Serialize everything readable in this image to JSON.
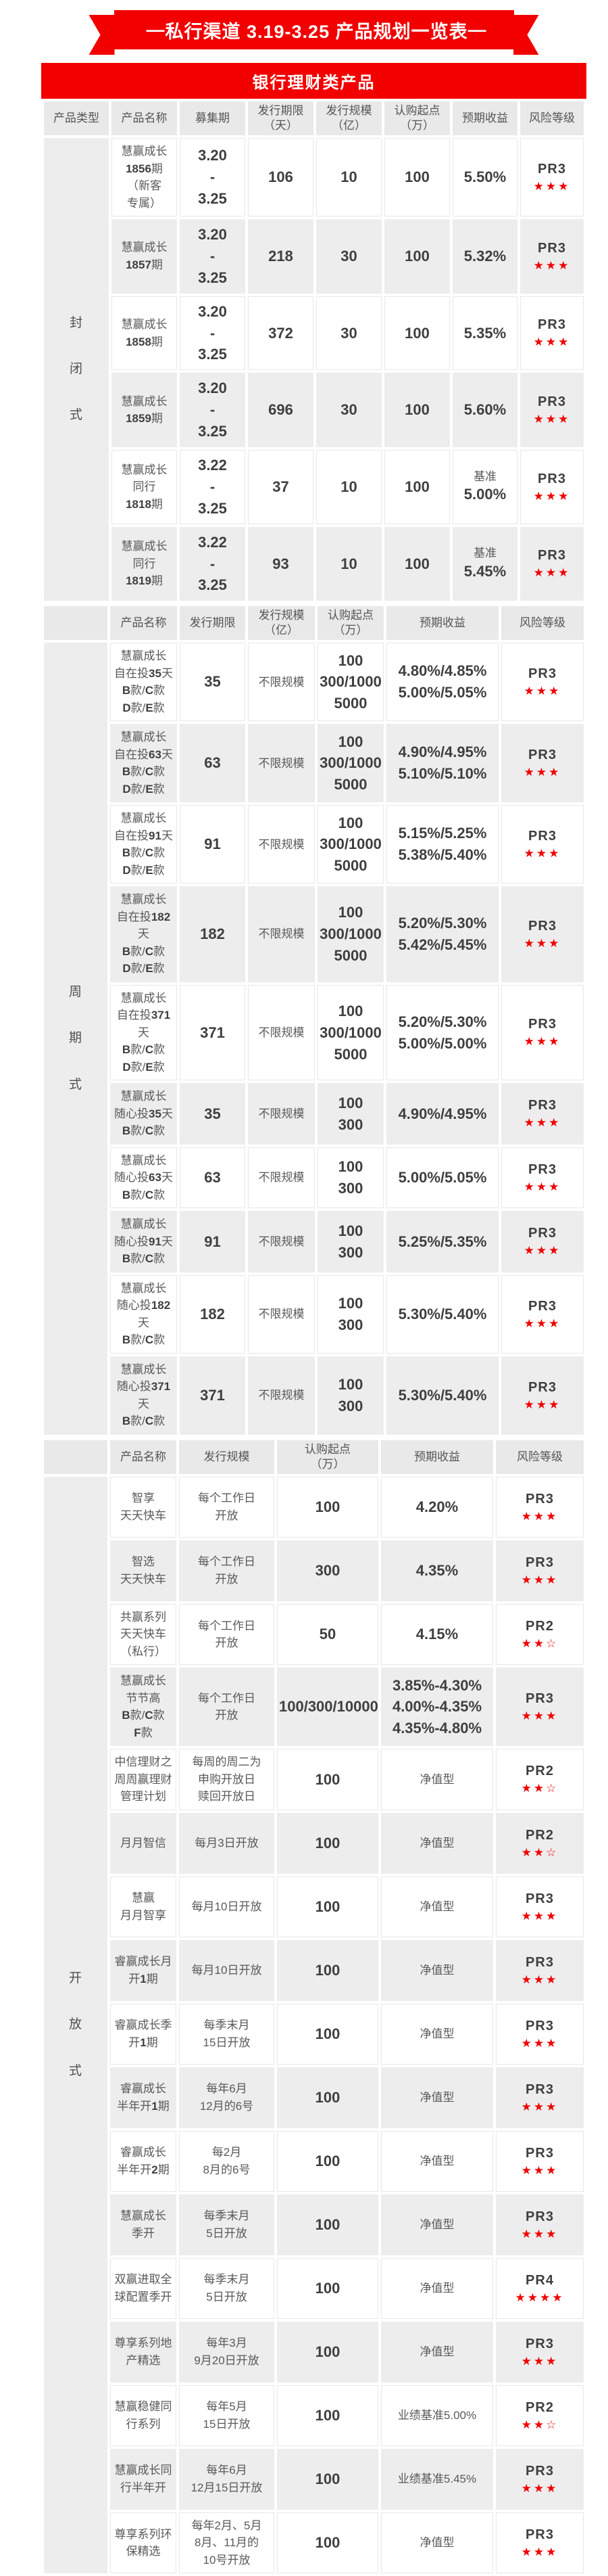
{
  "page": {
    "dash": "—",
    "title": "私行渠道 3.19-3.25 产品规划一览表",
    "category_banner": "银行理财类产品"
  },
  "colors": {
    "brand_red": "#f20000",
    "star_red": "#f00000",
    "header_bg": "#e9e9e9",
    "row_alt_bg": "#ededed",
    "text_dark": "#3f3f3f",
    "text_gray": "#595959"
  },
  "sections": [
    {
      "id": "closed",
      "type_label": "封闭式",
      "headers": [
        "产品类型",
        "产品名称",
        "募集期",
        "发行期限\n（天）",
        "发行规模\n（亿）",
        "认购起点\n（万）",
        "预期收益",
        "风险等级"
      ],
      "keys": [
        "product-type",
        "product-name",
        "raise-period",
        "issue-term-days",
        "issue-scale",
        "min-subscription",
        "expected-yield",
        "risk-level"
      ],
      "rows": [
        [
          [
            "慧赢成长\n1856期\n（新客\n专属）",
            "t"
          ],
          [
            "3.20\n-\n3.25",
            "n"
          ],
          [
            "106",
            "n"
          ],
          [
            "10",
            "n"
          ],
          [
            "100",
            "n"
          ],
          [
            "5.50%",
            "n"
          ],
          [
            "PR3",
            "r",
            3,
            0
          ]
        ],
        [
          [
            "慧赢成长\n1857期",
            "t"
          ],
          [
            "3.20\n-\n3.25",
            "n"
          ],
          [
            "218",
            "n"
          ],
          [
            "30",
            "n"
          ],
          [
            "100",
            "n"
          ],
          [
            "5.32%",
            "n"
          ],
          [
            "PR3",
            "r",
            3,
            0
          ]
        ],
        [
          [
            "慧赢成长\n1858期",
            "t"
          ],
          [
            "3.20\n-\n3.25",
            "n"
          ],
          [
            "372",
            "n"
          ],
          [
            "30",
            "n"
          ],
          [
            "100",
            "n"
          ],
          [
            "5.35%",
            "n"
          ],
          [
            "PR3",
            "r",
            3,
            0
          ]
        ],
        [
          [
            "慧赢成长\n1859期",
            "t"
          ],
          [
            "3.20\n-\n3.25",
            "n"
          ],
          [
            "696",
            "n"
          ],
          [
            "30",
            "n"
          ],
          [
            "100",
            "n"
          ],
          [
            "5.60%",
            "n"
          ],
          [
            "PR3",
            "r",
            3,
            0
          ]
        ],
        [
          [
            "慧赢成长\n同行\n1818期",
            "t"
          ],
          [
            "3.22\n-\n3.25",
            "n"
          ],
          [
            "37",
            "n"
          ],
          [
            "10",
            "n"
          ],
          [
            "100",
            "n"
          ],
          [
            "基准\n5.00%",
            "m"
          ],
          [
            "PR3",
            "r",
            3,
            0
          ]
        ],
        [
          [
            "慧赢成长\n同行\n1819期",
            "t"
          ],
          [
            "3.22\n-\n3.25",
            "n"
          ],
          [
            "93",
            "n"
          ],
          [
            "10",
            "n"
          ],
          [
            "100",
            "n"
          ],
          [
            "基准\n5.45%",
            "m"
          ],
          [
            "PR3",
            "r",
            3,
            0
          ]
        ]
      ]
    },
    {
      "id": "periodic",
      "type_label": "周期式",
      "headers": [
        "",
        "产品名称",
        "发行期限",
        "发行规模\n（亿）",
        "认购起点\n（万）",
        "预期收益",
        "风险等级"
      ],
      "keys": [
        "product-type",
        "product-name",
        "issue-term",
        "issue-scale",
        "min-subscription",
        "expected-yield",
        "risk-level"
      ],
      "rows": [
        [
          [
            "慧赢成长\n自在投35天\nB款/C款\nD款/E款",
            "t"
          ],
          [
            "35",
            "n"
          ],
          [
            "不限规模",
            "t"
          ],
          [
            "100\n300/1000\n5000",
            "n"
          ],
          [
            "4.80%/4.85%\n5.00%/5.05%",
            "n"
          ],
          [
            "PR3",
            "r",
            3,
            0
          ]
        ],
        [
          [
            "慧赢成长\n自在投63天\nB款/C款\nD款/E款",
            "t"
          ],
          [
            "63",
            "n"
          ],
          [
            "不限规模",
            "t"
          ],
          [
            "100\n300/1000\n5000",
            "n"
          ],
          [
            "4.90%/4.95%\n5.10%/5.10%",
            "n"
          ],
          [
            "PR3",
            "r",
            3,
            0
          ]
        ],
        [
          [
            "慧赢成长\n自在投91天\nB款/C款\nD款/E款",
            "t"
          ],
          [
            "91",
            "n"
          ],
          [
            "不限规模",
            "t"
          ],
          [
            "100\n300/1000\n5000",
            "n"
          ],
          [
            "5.15%/5.25%\n5.38%/5.40%",
            "n"
          ],
          [
            "PR3",
            "r",
            3,
            0
          ]
        ],
        [
          [
            "慧赢成长\n自在投182天\nB款/C款\nD款/E款",
            "t"
          ],
          [
            "182",
            "n"
          ],
          [
            "不限规模",
            "t"
          ],
          [
            "100\n300/1000\n5000",
            "n"
          ],
          [
            "5.20%/5.30%\n5.42%/5.45%",
            "n"
          ],
          [
            "PR3",
            "r",
            3,
            0
          ]
        ],
        [
          [
            "慧赢成长\n自在投371天\nB款/C款\nD款/E款",
            "t"
          ],
          [
            "371",
            "n"
          ],
          [
            "不限规模",
            "t"
          ],
          [
            "100\n300/1000\n5000",
            "n"
          ],
          [
            "5.20%/5.30%\n5.00%/5.00%",
            "n"
          ],
          [
            "PR3",
            "r",
            3,
            0
          ]
        ],
        [
          [
            "慧赢成长\n随心投35天\nB款/C款",
            "t"
          ],
          [
            "35",
            "n"
          ],
          [
            "不限规模",
            "t"
          ],
          [
            "100\n300",
            "n"
          ],
          [
            "4.90%/4.95%",
            "n"
          ],
          [
            "PR3",
            "r",
            3,
            0
          ]
        ],
        [
          [
            "慧赢成长\n随心投63天\nB款/C款",
            "t"
          ],
          [
            "63",
            "n"
          ],
          [
            "不限规模",
            "t"
          ],
          [
            "100\n300",
            "n"
          ],
          [
            "5.00%/5.05%",
            "n"
          ],
          [
            "PR3",
            "r",
            3,
            0
          ]
        ],
        [
          [
            "慧赢成长\n随心投91天\nB款/C款",
            "t"
          ],
          [
            "91",
            "n"
          ],
          [
            "不限规模",
            "t"
          ],
          [
            "100\n300",
            "n"
          ],
          [
            "5.25%/5.35%",
            "n"
          ],
          [
            "PR3",
            "r",
            3,
            0
          ]
        ],
        [
          [
            "慧赢成长\n随心投182天\nB款/C款",
            "t"
          ],
          [
            "182",
            "n"
          ],
          [
            "不限规模",
            "t"
          ],
          [
            "100\n300",
            "n"
          ],
          [
            "5.30%/5.40%",
            "n"
          ],
          [
            "PR3",
            "r",
            3,
            0
          ]
        ],
        [
          [
            "慧赢成长\n随心投371天\nB款/C款",
            "t"
          ],
          [
            "371",
            "n"
          ],
          [
            "不限规模",
            "t"
          ],
          [
            "100\n300",
            "n"
          ],
          [
            "5.30%/5.40%",
            "n"
          ],
          [
            "PR3",
            "r",
            3,
            0
          ]
        ]
      ]
    },
    {
      "id": "open",
      "type_label": "开放式",
      "headers": [
        "",
        "产品名称",
        "发行规模",
        "认购起点\n（万）",
        "预期收益",
        "风险等级"
      ],
      "keys": [
        "product-type",
        "product-name",
        "issue-scale",
        "min-subscription",
        "expected-yield",
        "risk-level"
      ],
      "rows": [
        [
          [
            "智享\n天天快车",
            "t"
          ],
          [
            "每个工作日\n开放",
            "t"
          ],
          [
            "100",
            "n"
          ],
          [
            "4.20%",
            "n"
          ],
          [
            "PR3",
            "r",
            3,
            0
          ]
        ],
        [
          [
            "智选\n天天快车",
            "t"
          ],
          [
            "每个工作日\n开放",
            "t"
          ],
          [
            "300",
            "n"
          ],
          [
            "4.35%",
            "n"
          ],
          [
            "PR3",
            "r",
            3,
            0
          ]
        ],
        [
          [
            "共赢系列\n天天快车\n（私行）",
            "t"
          ],
          [
            "每个工作日\n开放",
            "t"
          ],
          [
            "50",
            "n"
          ],
          [
            "4.15%",
            "n"
          ],
          [
            "PR2",
            "r",
            2,
            1
          ]
        ],
        [
          [
            "慧赢成长\n节节高\nB款/C款\nF款",
            "t"
          ],
          [
            "每个工作日\n开放",
            "t"
          ],
          [
            "100/300/10000",
            "n"
          ],
          [
            "3.85%-4.30%\n4.00%-4.35%\n4.35%-4.80%",
            "n"
          ],
          [
            "PR3",
            "r",
            3,
            0
          ]
        ],
        [
          [
            "中信理财之\n周周赢理财\n管理计划",
            "t"
          ],
          [
            "每周的周二为\n申购开放日\n赎回开放日",
            "t"
          ],
          [
            "100",
            "n"
          ],
          [
            "净值型",
            "t"
          ],
          [
            "PR2",
            "r",
            2,
            1
          ]
        ],
        [
          [
            "月月智信",
            "t"
          ],
          [
            "每月3日开放",
            "t"
          ],
          [
            "100",
            "n"
          ],
          [
            "净值型",
            "t"
          ],
          [
            "PR2",
            "r",
            2,
            1
          ]
        ],
        [
          [
            "慧赢\n月月智享",
            "t"
          ],
          [
            "每月10日开放",
            "t"
          ],
          [
            "100",
            "n"
          ],
          [
            "净值型",
            "t"
          ],
          [
            "PR3",
            "r",
            3,
            0
          ]
        ],
        [
          [
            "睿赢成长月\n开1期",
            "t"
          ],
          [
            "每月10日开放",
            "t"
          ],
          [
            "100",
            "n"
          ],
          [
            "净值型",
            "t"
          ],
          [
            "PR3",
            "r",
            3,
            0
          ]
        ],
        [
          [
            "睿赢成长季\n开1期",
            "t"
          ],
          [
            "每季末月\n15日开放",
            "t"
          ],
          [
            "100",
            "n"
          ],
          [
            "净值型",
            "t"
          ],
          [
            "PR3",
            "r",
            3,
            0
          ]
        ],
        [
          [
            "睿赢成长\n半年开1期",
            "t"
          ],
          [
            "每年6月\n12月的6号",
            "t"
          ],
          [
            "100",
            "n"
          ],
          [
            "净值型",
            "t"
          ],
          [
            "PR3",
            "r",
            3,
            0
          ]
        ],
        [
          [
            "睿赢成长\n半年开2期",
            "t"
          ],
          [
            "每2月\n8月的6号",
            "t"
          ],
          [
            "100",
            "n"
          ],
          [
            "净值型",
            "t"
          ],
          [
            "PR3",
            "r",
            3,
            0
          ]
        ],
        [
          [
            "慧赢成长\n季开",
            "t"
          ],
          [
            "每季末月\n5日开放",
            "t"
          ],
          [
            "100",
            "n"
          ],
          [
            "净值型",
            "t"
          ],
          [
            "PR3",
            "r",
            3,
            0
          ]
        ],
        [
          [
            "双赢进取全\n球配置季开",
            "t"
          ],
          [
            "每季末月\n5日开放",
            "t"
          ],
          [
            "100",
            "n"
          ],
          [
            "净值型",
            "t"
          ],
          [
            "PR4",
            "r",
            4,
            0
          ]
        ],
        [
          [
            "尊享系列地\n产精选",
            "t"
          ],
          [
            "每年3月\n9月20日开放",
            "t"
          ],
          [
            "100",
            "n"
          ],
          [
            "净值型",
            "t"
          ],
          [
            "PR3",
            "r",
            3,
            0
          ]
        ],
        [
          [
            "慧赢稳健同\n行系列",
            "t"
          ],
          [
            "每年5月\n15日开放",
            "t"
          ],
          [
            "100",
            "n"
          ],
          [
            "业绩基准5.00%",
            "t"
          ],
          [
            "PR2",
            "r",
            2,
            1
          ]
        ],
        [
          [
            "慧赢成长同\n行半年开",
            "t"
          ],
          [
            "每年6月\n12月15日开放",
            "t"
          ],
          [
            "100",
            "n"
          ],
          [
            "业绩基准5.45%",
            "t"
          ],
          [
            "PR3",
            "r",
            3,
            0
          ]
        ],
        [
          [
            "尊享系列环\n保精选",
            "t"
          ],
          [
            "每年2月、5月\n8月、11月的\n10号开放",
            "t"
          ],
          [
            "100",
            "n"
          ],
          [
            "净值型",
            "t"
          ],
          [
            "PR3",
            "r",
            3,
            0
          ]
        ]
      ]
    }
  ]
}
